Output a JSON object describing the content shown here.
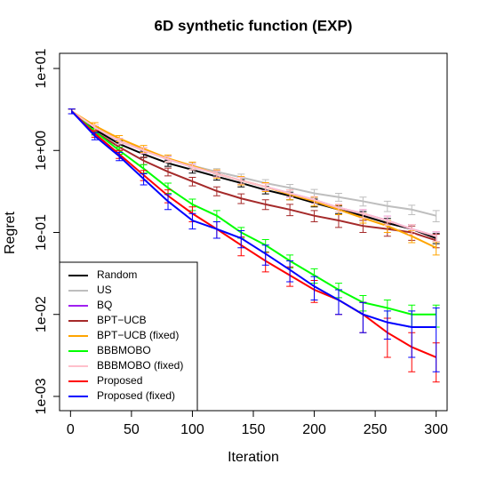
{
  "chart_data": {
    "type": "line",
    "title": "6D synthetic function (EXP)",
    "x_label": "Iteration",
    "y_label": "Regret",
    "log_y": true,
    "legend": "bottom-left",
    "xlim": [
      -9,
      309
    ],
    "ylim": [
      0.00067,
      15.3
    ],
    "xticks": [
      0,
      50,
      100,
      150,
      200,
      250,
      300
    ],
    "yticks": [
      {
        "value": 10,
        "label": "1e+01"
      },
      {
        "value": 1,
        "label": "1e+00"
      },
      {
        "value": 0.1,
        "label": "1e-01"
      },
      {
        "value": 0.01,
        "label": "1e-02"
      },
      {
        "value": 0.001,
        "label": "1e-03"
      }
    ],
    "x": [
      1,
      20,
      40,
      60,
      80,
      100,
      120,
      140,
      160,
      180,
      200,
      220,
      240,
      260,
      280,
      300
    ],
    "series": [
      {
        "name": "Random",
        "color": "#000000",
        "values": [
          3,
          1.8,
          1.2,
          0.9,
          0.7,
          0.58,
          0.48,
          0.4,
          0.33,
          0.28,
          0.23,
          0.19,
          0.16,
          0.13,
          0.11,
          0.085
        ],
        "errors": [
          0.2,
          0.15,
          0.1,
          0.08,
          0.06,
          0.05,
          0.045,
          0.04,
          0.035,
          0.03,
          0.025,
          0.02,
          0.02,
          0.018,
          0.015,
          0.012
        ]
      },
      {
        "name": "US",
        "color": "#bebebe",
        "values": [
          3,
          1.9,
          1.3,
          1.0,
          0.78,
          0.65,
          0.55,
          0.47,
          0.4,
          0.35,
          0.3,
          0.27,
          0.24,
          0.21,
          0.19,
          0.16
        ],
        "errors": [
          0.2,
          0.15,
          0.1,
          0.08,
          0.07,
          0.06,
          0.05,
          0.045,
          0.04,
          0.035,
          0.035,
          0.03,
          0.03,
          0.03,
          0.025,
          0.025
        ]
      },
      {
        "name": "BQ",
        "color": "#a020f0",
        "values": [
          3,
          1.9,
          1.3,
          1.0,
          0.78,
          0.63,
          0.52,
          0.43,
          0.36,
          0.3,
          0.25,
          0.2,
          0.17,
          0.14,
          0.11,
          0.09
        ],
        "errors": [
          0.2,
          0.15,
          0.1,
          0.08,
          0.06,
          0.05,
          0.045,
          0.04,
          0.035,
          0.03,
          0.025,
          0.02,
          0.02,
          0.018,
          0.015,
          0.012
        ]
      },
      {
        "name": "BPT−UCB",
        "color": "#a52a2a",
        "values": [
          3,
          1.7,
          1.1,
          0.75,
          0.55,
          0.42,
          0.32,
          0.26,
          0.22,
          0.19,
          0.16,
          0.14,
          0.12,
          0.11,
          0.1,
          0.08
        ],
        "errors": [
          0.2,
          0.15,
          0.1,
          0.08,
          0.06,
          0.05,
          0.04,
          0.035,
          0.03,
          0.03,
          0.025,
          0.025,
          0.02,
          0.02,
          0.02,
          0.015
        ]
      },
      {
        "name": "BPT−UCB (fixed)",
        "color": "#ffa500",
        "values": [
          3,
          2.0,
          1.4,
          1.05,
          0.8,
          0.65,
          0.52,
          0.43,
          0.36,
          0.29,
          0.24,
          0.19,
          0.15,
          0.12,
          0.09,
          0.065
        ],
        "errors": [
          0.2,
          0.18,
          0.12,
          0.1,
          0.08,
          0.07,
          0.06,
          0.05,
          0.045,
          0.04,
          0.03,
          0.025,
          0.02,
          0.02,
          0.015,
          0.012
        ]
      },
      {
        "name": "BBBMOBO",
        "color": "#00ff00",
        "values": [
          3,
          1.7,
          1.0,
          0.6,
          0.35,
          0.22,
          0.16,
          0.1,
          0.07,
          0.045,
          0.03,
          0.02,
          0.014,
          0.012,
          0.01,
          0.01
        ],
        "errors": [
          0.2,
          0.15,
          0.1,
          0.07,
          0.05,
          0.035,
          0.025,
          0.015,
          0.012,
          0.008,
          0.006,
          0.004,
          0.003,
          0.003,
          0.003,
          0.003
        ]
      },
      {
        "name": "BBBMOBO (fixed)",
        "color": "#ffc0cb",
        "values": [
          3,
          1.9,
          1.3,
          1.0,
          0.78,
          0.63,
          0.52,
          0.43,
          0.36,
          0.3,
          0.25,
          0.2,
          0.17,
          0.14,
          0.11,
          0.09
        ],
        "errors": [
          0.2,
          0.15,
          0.1,
          0.08,
          0.06,
          0.05,
          0.045,
          0.04,
          0.035,
          0.03,
          0.025,
          0.02,
          0.02,
          0.018,
          0.015,
          0.012
        ]
      },
      {
        "name": "Proposed",
        "color": "#ff0000",
        "values": [
          3,
          1.6,
          0.9,
          0.5,
          0.28,
          0.17,
          0.11,
          0.07,
          0.045,
          0.03,
          0.02,
          0.015,
          0.01,
          0.006,
          0.004,
          0.003
        ],
        "errors": [
          0.2,
          0.15,
          0.1,
          0.07,
          0.05,
          0.035,
          0.025,
          0.018,
          0.012,
          0.008,
          0.006,
          0.005,
          0.004,
          0.003,
          0.002,
          0.0015
        ]
      },
      {
        "name": "Proposed (fixed)",
        "color": "#0000ff",
        "values": [
          3,
          1.5,
          0.85,
          0.45,
          0.24,
          0.14,
          0.11,
          0.085,
          0.055,
          0.035,
          0.022,
          0.015,
          0.01,
          0.008,
          0.007,
          0.007
        ],
        "errors": [
          0.2,
          0.15,
          0.1,
          0.07,
          0.05,
          0.03,
          0.025,
          0.02,
          0.015,
          0.01,
          0.007,
          0.005,
          0.004,
          0.003,
          0.004,
          0.005
        ]
      }
    ]
  }
}
